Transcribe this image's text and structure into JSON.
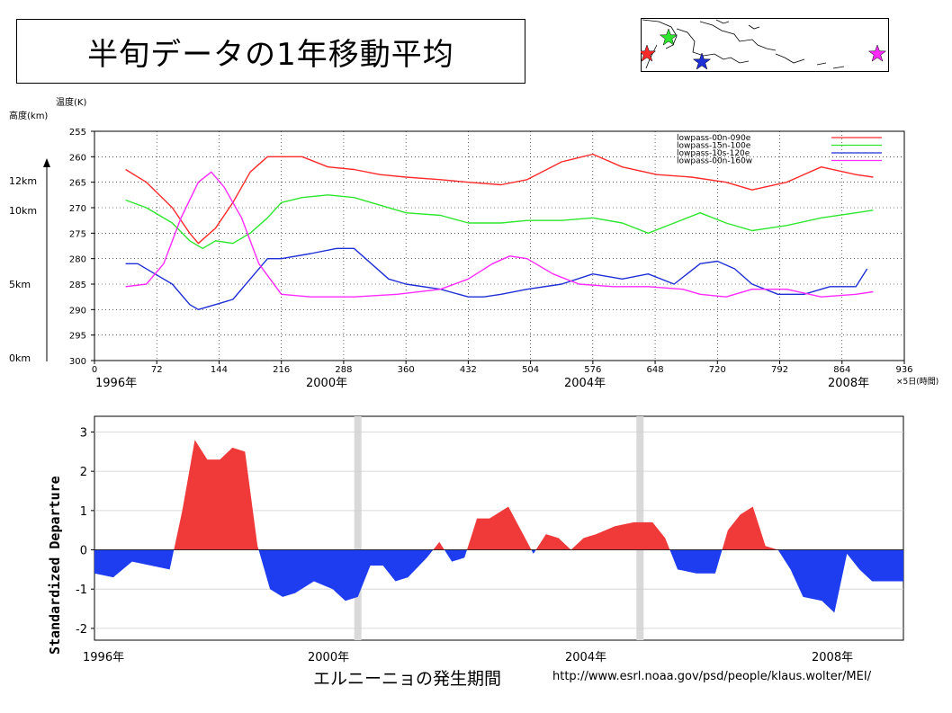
{
  "title": "半旬データの1年移動平均",
  "colors": {
    "red": "#ff2a2a",
    "green": "#2ee62e",
    "blue": "#1f2fd6",
    "magenta": "#ff2aff",
    "bar_pos": "#f03a3a",
    "bar_neg": "#1e3cf0"
  },
  "map": {
    "stars": [
      "red-star",
      "green-star",
      "blue-star",
      "magenta-star"
    ]
  },
  "chart_data": [
    {
      "type": "line",
      "ylabel_temp": "温度(K)",
      "ylabel_height": "高度(km)",
      "xunit": "×5日(時間)",
      "ylim": [
        255,
        300
      ],
      "y_inverted": true,
      "xlim": [
        0,
        936
      ],
      "yticks": [
        "255",
        "260",
        "265",
        "270",
        "275",
        "280",
        "285",
        "290",
        "295",
        "300"
      ],
      "xticks": [
        "0",
        "72",
        "144",
        "216",
        "288",
        "360",
        "432",
        "504",
        "576",
        "648",
        "720",
        "792",
        "864",
        "936"
      ],
      "height_labels": [
        "12km",
        "10km",
        "5km",
        "0km"
      ],
      "year_labels": [
        "1996年",
        "2000年",
        "2004年",
        "2008年"
      ],
      "legend_position": "top-right",
      "series": [
        {
          "name": "lowpass-00n-090e",
          "color": "#ff2a2a",
          "x": [
            36,
            60,
            90,
            110,
            120,
            140,
            160,
            180,
            200,
            216,
            240,
            270,
            300,
            330,
            360,
            400,
            432,
            470,
            500,
            540,
            576,
            610,
            650,
            690,
            730,
            760,
            800,
            840,
            880,
            900
          ],
          "y": [
            262.5,
            265,
            270,
            275,
            277,
            274,
            269,
            263,
            260,
            260,
            260,
            262,
            262.5,
            263.5,
            264,
            264.5,
            265,
            265.5,
            264.5,
            261,
            259.5,
            262,
            263.5,
            264,
            265,
            266.5,
            265,
            262,
            263.5,
            264
          ]
        },
        {
          "name": "lowpass-15n-100e",
          "color": "#2ee62e",
          "x": [
            36,
            60,
            90,
            110,
            125,
            140,
            160,
            180,
            200,
            216,
            240,
            270,
            300,
            330,
            360,
            400,
            432,
            470,
            500,
            540,
            576,
            610,
            640,
            670,
            700,
            730,
            760,
            800,
            840,
            880,
            900
          ],
          "y": [
            268.5,
            270,
            273,
            276.5,
            278,
            276.5,
            277,
            275,
            272,
            269,
            268,
            267.5,
            268,
            269.5,
            271,
            271.5,
            273,
            273,
            272.5,
            272.5,
            272,
            273,
            275,
            273,
            271,
            273,
            274.5,
            273.5,
            272,
            271,
            270.5
          ]
        },
        {
          "name": "lowpass-10s-120e",
          "color": "#1f2fd6",
          "x": [
            36,
            50,
            70,
            90,
            110,
            120,
            140,
            160,
            180,
            200,
            216,
            250,
            280,
            300,
            320,
            340,
            360,
            400,
            432,
            450,
            470,
            500,
            540,
            576,
            610,
            640,
            670,
            700,
            720,
            740,
            760,
            790,
            820,
            850,
            880,
            893
          ],
          "y": [
            281,
            281,
            283,
            285,
            289,
            290,
            289,
            288,
            284,
            280,
            280,
            279,
            278,
            278,
            281,
            284,
            285,
            286,
            287.5,
            287.5,
            287,
            286,
            285,
            283,
            284,
            283,
            285,
            281,
            280.5,
            282,
            285,
            287,
            287,
            285.5,
            285.5,
            282
          ]
        },
        {
          "name": "lowpass-00n-160w",
          "color": "#ff2aff",
          "x": [
            36,
            60,
            80,
            100,
            120,
            135,
            150,
            170,
            190,
            216,
            250,
            300,
            350,
            400,
            432,
            460,
            480,
            500,
            530,
            560,
            600,
            640,
            680,
            700,
            730,
            760,
            800,
            840,
            880,
            900
          ],
          "y": [
            285.5,
            285,
            281,
            272,
            265,
            263,
            266,
            272,
            281,
            287,
            287.5,
            287.5,
            287,
            286,
            284,
            281,
            279.5,
            280,
            283,
            285,
            285.5,
            285.5,
            286,
            287,
            287.5,
            286,
            286,
            287.5,
            287,
            286.5
          ]
        }
      ]
    },
    {
      "type": "area",
      "ylabel": "Standardized Departure",
      "ylim": [
        -2.3,
        3.4
      ],
      "yticks": [
        "3",
        "2",
        "1",
        "0",
        "-1",
        "-2"
      ],
      "xlim": [
        1996,
        2008.9
      ],
      "year_labels": [
        "1996年",
        "2000年",
        "2004年",
        "2008年"
      ],
      "grey_markers": [
        2000.2,
        2004.7
      ],
      "x": [
        1996.0,
        1996.3,
        1996.6,
        1996.9,
        1997.2,
        1997.4,
        1997.6,
        1997.8,
        1998.0,
        1998.2,
        1998.4,
        1998.6,
        1998.8,
        1999.0,
        1999.2,
        1999.5,
        1999.8,
        2000.0,
        2000.2,
        2000.4,
        2000.6,
        2000.8,
        2001.0,
        2001.3,
        2001.5,
        2001.7,
        2001.9,
        2002.1,
        2002.3,
        2002.6,
        2002.9,
        2003.0,
        2003.2,
        2003.4,
        2003.6,
        2003.8,
        2004.0,
        2004.3,
        2004.6,
        2004.9,
        2005.1,
        2005.3,
        2005.6,
        2005.9,
        2006.1,
        2006.3,
        2006.5,
        2006.7,
        2006.9,
        2007.1,
        2007.3,
        2007.6,
        2007.8,
        2008.0,
        2008.2,
        2008.4,
        2008.6,
        2008.9
      ],
      "y": [
        -0.6,
        -0.7,
        -0.3,
        -0.4,
        -0.5,
        1.0,
        2.8,
        2.3,
        2.3,
        2.6,
        2.5,
        0.1,
        -1.0,
        -1.2,
        -1.1,
        -0.8,
        -1.0,
        -1.3,
        -1.2,
        -0.4,
        -0.4,
        -0.8,
        -0.7,
        -0.2,
        0.2,
        -0.3,
        -0.2,
        0.8,
        0.8,
        1.1,
        0.2,
        -0.1,
        0.4,
        0.3,
        0.0,
        0.3,
        0.4,
        0.6,
        0.7,
        0.7,
        0.3,
        -0.5,
        -0.6,
        -0.6,
        0.5,
        0.9,
        1.1,
        0.1,
        0.0,
        -0.5,
        -1.2,
        -1.3,
        -1.6,
        -0.1,
        -0.5,
        -0.8,
        -0.8,
        -0.8
      ]
    }
  ],
  "caption": "エルニーニョの発生期間",
  "url": "http://www.esrl.noaa.gov/psd/people/klaus.wolter/MEI/"
}
